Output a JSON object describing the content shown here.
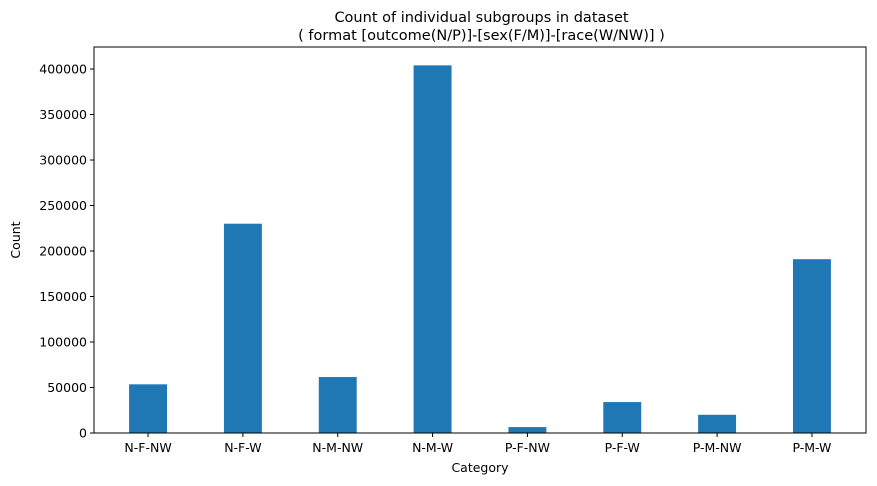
{
  "chart_data": {
    "type": "bar",
    "title": "Count of individual subgroups in dataset",
    "subtitle": "( format [outcome(N/P)]-[sex(F/M)]-[race(W/NW)] )",
    "xlabel": "Category",
    "ylabel": "Count",
    "categories": [
      "N-F-NW",
      "N-F-W",
      "N-M-NW",
      "N-M-W",
      "P-F-NW",
      "P-F-W",
      "P-M-NW",
      "P-M-W"
    ],
    "values": [
      53500,
      230000,
      61500,
      404000,
      6500,
      34000,
      20000,
      191000
    ],
    "ylim": [
      0,
      424200
    ],
    "yticks": [
      0,
      50000,
      100000,
      150000,
      200000,
      250000,
      300000,
      350000,
      400000
    ],
    "ytick_labels": [
      "0",
      "50000",
      "100000",
      "150000",
      "200000",
      "250000",
      "300000",
      "350000",
      "400000"
    ],
    "bar_color": "#1f77b4",
    "grid": false,
    "legend": "none"
  }
}
